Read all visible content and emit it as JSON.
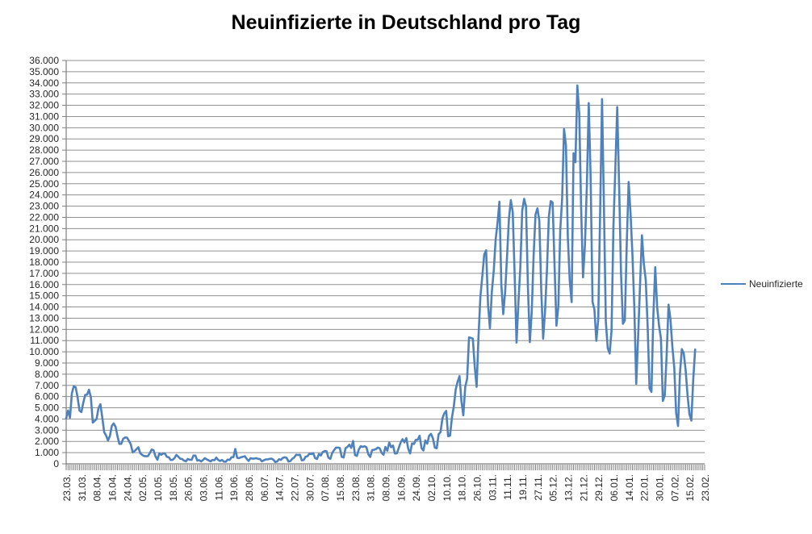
{
  "chart_data": {
    "type": "line",
    "title": "Neuinfizierte in Deutschland pro Tag",
    "legend_position": "right",
    "grid": true,
    "colors": {
      "series_line": "#4F81BD",
      "gridline": "#919191",
      "axis_line": "#7F7F7F",
      "tick_text": "#262626",
      "title_text": "#000000",
      "background": "#FFFFFF"
    },
    "y_axis": {
      "min": 0,
      "max": 36000,
      "step": 1000,
      "number_format": "thousands-dot"
    },
    "x_axis": {
      "tick_labels": [
        "23.03.",
        "31.03.",
        "08.04.",
        "16.04.",
        "24.04.",
        "02.05.",
        "10.05.",
        "18.05.",
        "26.05.",
        "03.06.",
        "11.06.",
        "19.06.",
        "28.06.",
        "06.07.",
        "14.07.",
        "22.07.",
        "30.07.",
        "07.08.",
        "15.08.",
        "23.08.",
        "31.08.",
        "08.09.",
        "16.09.",
        "24.09.",
        "02.10.",
        "10.10.",
        "18.10.",
        "26.10.",
        "03.11.",
        "11.11.",
        "19.11.",
        "27.11.",
        "05.12.",
        "13.12.",
        "21.12.",
        "29.12.",
        "06.01.",
        "14.01.",
        "22.01.",
        "30.01.",
        "07.02.",
        "15.02.",
        "23.02."
      ],
      "label_every": 8,
      "total_categories": 337
    },
    "series": [
      {
        "name": "Neuinfizierte",
        "values": [
          4062,
          4764,
          4118,
          6294,
          6933,
          6824,
          5936,
          4751,
          4615,
          5453,
          6156,
          6174,
          6613,
          5936,
          3677,
          3834,
          4003,
          4974,
          5323,
          4133,
          2821,
          2537,
          2082,
          2486,
          3380,
          3609,
          3301,
          2458,
          1775,
          1785,
          2237,
          2352,
          2337,
          2055,
          1737,
          1018,
          1144,
          1304,
          1478,
          945,
          793,
          697,
          679,
          685,
          947,
          1284,
          1209,
          667,
          357,
          933,
          798,
          933,
          913,
          620,
          583,
          342,
          358,
          513,
          797,
          639,
          460,
          431,
          289,
          221,
          432,
          362,
          353,
          741,
          738,
          286,
          333,
          213,
          342,
          507,
          394,
          301,
          214,
          350,
          318,
          555,
          348,
          258,
          348,
          193,
          192,
          378,
          345,
          580,
          601,
          1331,
          537,
          503,
          587,
          630,
          677,
          445,
          256,
          498,
          466,
          466,
          503,
          446,
          422,
          219,
          312,
          390,
          397,
          442,
          465,
          378,
          159,
          210,
          412,
          351,
          534,
          583,
          529,
          202,
          249,
          454,
          569,
          815,
          781,
          818,
          305,
          340,
          633,
          684,
          902,
          870,
          955,
          509,
          432,
          879,
          741,
          1045,
          1147,
          1122,
          555,
          436,
          966,
          1226,
          1445,
          1449,
          1415,
          625,
          561,
          1390,
          1510,
          1707,
          1427,
          2034,
          782,
          711,
          1278,
          1576,
          1507,
          1571,
          1479,
          852,
          610,
          1218,
          1256,
          1311,
          1453,
          1378,
          988,
          814,
          1499,
          1176,
          1892,
          1484,
          1630,
          920,
          927,
          1407,
          1901,
          2194,
          1916,
          2297,
          1345,
          922,
          1821,
          1769,
          2143,
          2153,
          2507,
          1411,
          1192,
          2089,
          1798,
          2503,
          2673,
          2279,
          1449,
          1382,
          2639,
          2828,
          4058,
          4516,
          4721,
          2467,
          2511,
          4122,
          5132,
          6638,
          7334,
          7830,
          5587,
          4325,
          6868,
          7595,
          11287,
          11242,
          11176,
          8685,
          6868,
          11409,
          14964,
          16774,
          18681,
          19059,
          14177,
          12097,
          15352,
          17214,
          19990,
          21506,
          23399,
          16017,
          13363,
          15332,
          18487,
          21866,
          23542,
          22461,
          16947,
          10824,
          14419,
          17561,
          22609,
          23648,
          22964,
          15741,
          10864,
          13554,
          18633,
          22268,
          22806,
          21695,
          15586,
          11169,
          13604,
          17270,
          22046,
          23449,
          23318,
          17767,
          12332,
          14054,
          20815,
          23679,
          29875,
          28438,
          20200,
          16362,
          14432,
          27728,
          26923,
          33777,
          31300,
          22771,
          16643,
          19528,
          24740,
          32195,
          25533,
          14455,
          13755,
          10976,
          12892,
          22459,
          32552,
          22924,
          12690,
          10315,
          9847,
          11897,
          21237,
          26391,
          31849,
          24694,
          16946,
          12497,
          12802,
          19600,
          25164,
          22368,
          18678,
          13882,
          7141,
          11369,
          15974,
          20398,
          17862,
          16417,
          12257,
          6729,
          6412,
          13202,
          17553,
          14022,
          12321,
          11192,
          5608,
          6114,
          9705,
          14211,
          12908,
          10485,
          8616,
          4535,
          3379,
          8072,
          10237,
          9860,
          8354,
          6114,
          4426,
          3856,
          7556,
          10207
        ]
      }
    ]
  }
}
